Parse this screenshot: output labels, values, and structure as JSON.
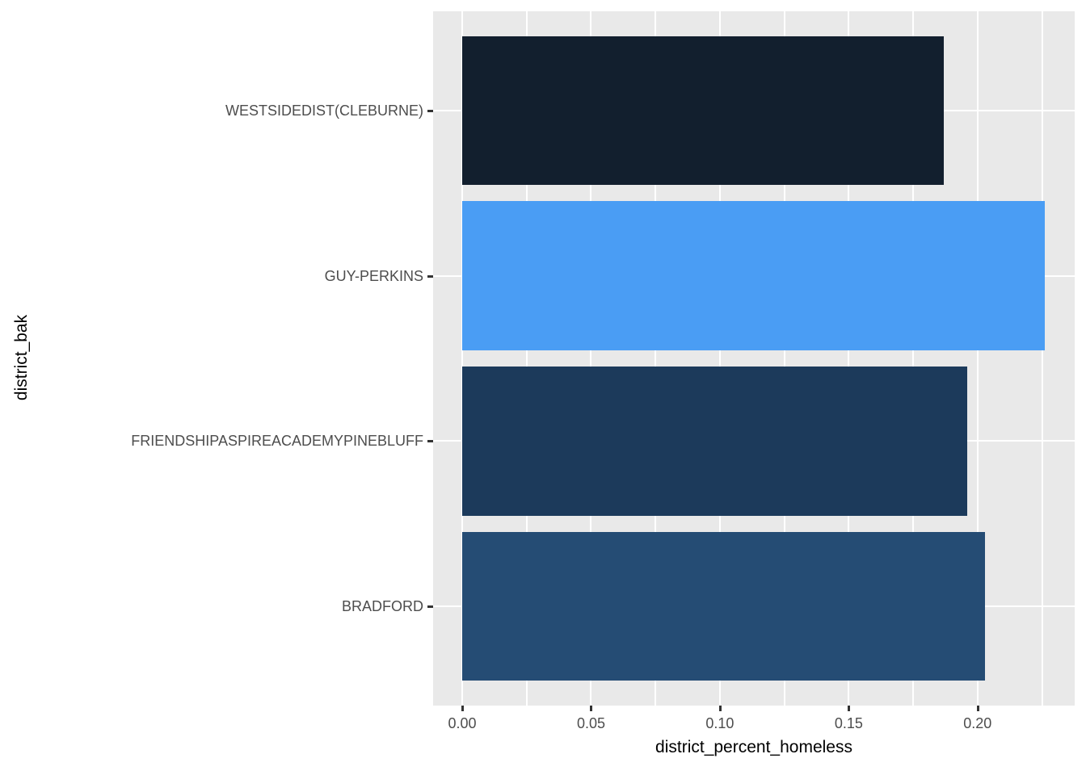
{
  "chart_data": {
    "type": "bar",
    "orientation": "horizontal",
    "title": "",
    "xlabel": "district_percent_homeless",
    "ylabel": "district_bak",
    "categories": [
      "WESTSIDEDIST(CLEBURNE)",
      "GUY-PERKINS",
      "FRIENDSHIPASPIREACADEMYPINEBLUFF",
      "BRADFORD"
    ],
    "values": [
      0.187,
      0.226,
      0.196,
      0.203
    ],
    "bar_colors": [
      "#121F2E",
      "#4A9DF4",
      "#1C3A5B",
      "#254C74"
    ],
    "bar_start": 0,
    "xlim": [
      -0.0113,
      0.2377
    ],
    "x_major_ticks": [
      0.0,
      0.05,
      0.1,
      0.15,
      0.2
    ],
    "x_tick_labels": [
      "0.00",
      "0.05",
      "0.10",
      "0.15",
      "0.20"
    ],
    "x_minor_ticks": [
      0.025,
      0.075,
      0.125,
      0.175,
      0.225
    ],
    "grid": true,
    "legend": "none"
  },
  "style": {
    "panel_bg": "#E9E9E9",
    "grid_color": "#FFFFFF",
    "tick_mark_color": "#333333",
    "tick_label_color": "#4D4D4D",
    "axis_title_color": "#000000",
    "outer_bg": "#FFFFFF"
  }
}
